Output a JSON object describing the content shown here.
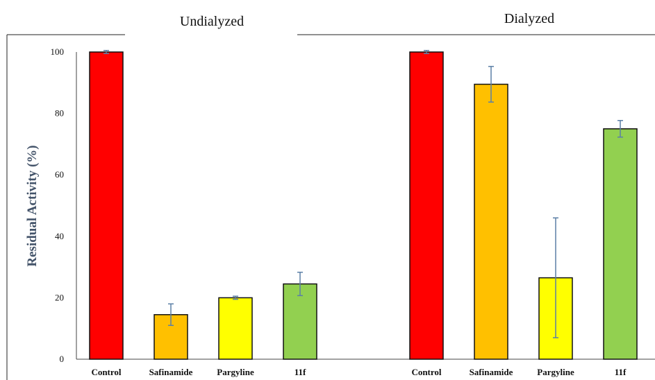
{
  "chart_data": {
    "type": "bar",
    "title": "",
    "xlabel": "",
    "ylabel": "Residual Activity (%)",
    "ylim": [
      0,
      100
    ],
    "yticks": [
      0,
      20,
      40,
      60,
      80,
      100
    ],
    "grid": false,
    "groups": [
      {
        "name": "Undialyzed",
        "categories": [
          "Control",
          "Safinamide",
          "Pargyline",
          "11f"
        ],
        "values": [
          100,
          14.5,
          20,
          24.5
        ],
        "errors": [
          0.5,
          3.5,
          0.5,
          3.8
        ],
        "colors": [
          "#ff0000",
          "#ffc000",
          "#ffff00",
          "#92d050"
        ]
      },
      {
        "name": "Dialyzed",
        "categories": [
          "Control",
          "Safinamide",
          "Pargyline",
          "11f"
        ],
        "values": [
          100,
          89.5,
          26.5,
          75
        ],
        "errors": [
          0.5,
          5.8,
          19.5,
          2.7
        ],
        "colors": [
          "#ff0000",
          "#ffc000",
          "#ffff00",
          "#92d050"
        ]
      }
    ]
  }
}
